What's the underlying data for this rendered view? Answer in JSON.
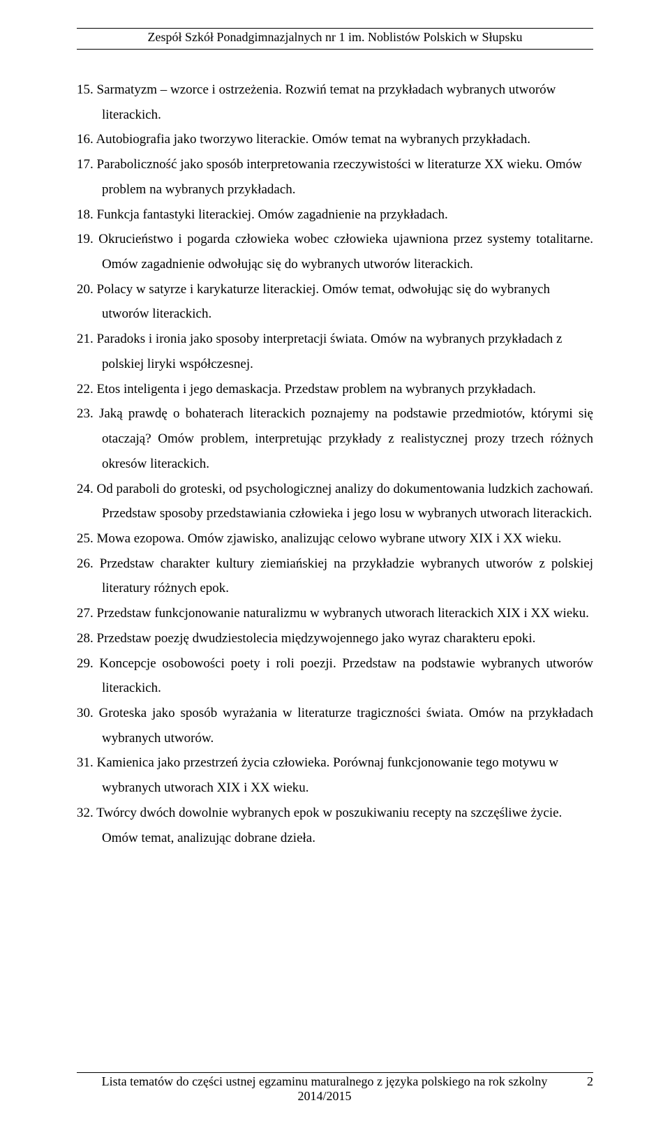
{
  "header": "Zespół Szkół Ponadgimnazjalnych nr 1 im. Noblistów Polskich w Słupsku",
  "items": [
    {
      "n": "15.",
      "t": "Sarmatyzm – wzorce i ostrzeżenia. Rozwiń temat na przykładach wybranych utworów literackich.",
      "j": false
    },
    {
      "n": "16.",
      "t": "Autobiografia jako tworzywo literackie. Omów temat na wybranych przykładach.",
      "j": false
    },
    {
      "n": "17.",
      "t": "Paraboliczność jako sposób interpretowania rzeczywistości w literaturze XX wieku. Omów problem na wybranych przykładach.",
      "j": false
    },
    {
      "n": "18.",
      "t": "Funkcja fantastyki literackiej. Omów zagadnienie na przykładach.",
      "j": false
    },
    {
      "n": "19.",
      "t": "Okrucieństwo i pogarda człowieka wobec człowieka ujawniona przez systemy totalitarne. Omów zagadnienie odwołując się do wybranych utworów literackich.",
      "j": true
    },
    {
      "n": "20.",
      "t": "Polacy w satyrze i karykaturze literackiej. Omów temat, odwołując się do wybranych utworów literackich.",
      "j": false
    },
    {
      "n": "21.",
      "t": "Paradoks i ironia jako sposoby interpretacji świata. Omów na wybranych przykładach z polskiej liryki współczesnej.",
      "j": false
    },
    {
      "n": "22.",
      "t": "Etos inteligenta i jego demaskacja. Przedstaw problem na wybranych przykładach.",
      "j": false
    },
    {
      "n": "23.",
      "t": "Jaką prawdę o bohaterach literackich poznajemy na podstawie przedmiotów, którymi się otaczają? Omów problem, interpretując przykłady z realistycznej prozy trzech różnych okresów literackich.",
      "j": true
    },
    {
      "n": "24.",
      "t": "Od paraboli do groteski, od psychologicznej analizy do dokumentowania ludzkich zachowań. Przedstaw sposoby przedstawiania człowieka i jego losu w wybranych utworach literackich.",
      "j": true
    },
    {
      "n": "25.",
      "t": "Mowa ezopowa. Omów zjawisko, analizując celowo wybrane utwory XIX i XX wieku.",
      "j": false
    },
    {
      "n": "26.",
      "t": "Przedstaw charakter kultury ziemiańskiej na przykładzie wybranych utworów z polskiej literatury różnych epok.",
      "j": true
    },
    {
      "n": "27.",
      "t": "Przedstaw funkcjonowanie naturalizmu w wybranych utworach literackich XIX i XX wieku.",
      "j": false
    },
    {
      "n": "28.",
      "t": "Przedstaw poezję dwudziestolecia międzywojennego jako wyraz charakteru epoki.",
      "j": false
    },
    {
      "n": "29.",
      "t": "Koncepcje osobowości poety i roli poezji. Przedstaw na podstawie wybranych utworów literackich.",
      "j": true
    },
    {
      "n": "30.",
      "t": "Groteska jako sposób wyrażania w literaturze tragiczności świata. Omów na przykładach wybranych utworów.",
      "j": true
    },
    {
      "n": "31.",
      "t": "Kamienica jako przestrzeń życia człowieka. Porównaj funkcjonowanie tego motywu w wybranych utworach XIX i XX wieku.",
      "j": false
    },
    {
      "n": "32.",
      "t": "Twórcy dwóch dowolnie wybranych epok w poszukiwaniu recepty na szczęśliwe życie. Omów temat, analizując dobrane dzieła.",
      "j": false
    }
  ],
  "footer_line1": "Lista tematów do części ustnej egzaminu maturalnego z języka polskiego na rok szkolny",
  "footer_line2": "2014/2015",
  "page_number": "2"
}
